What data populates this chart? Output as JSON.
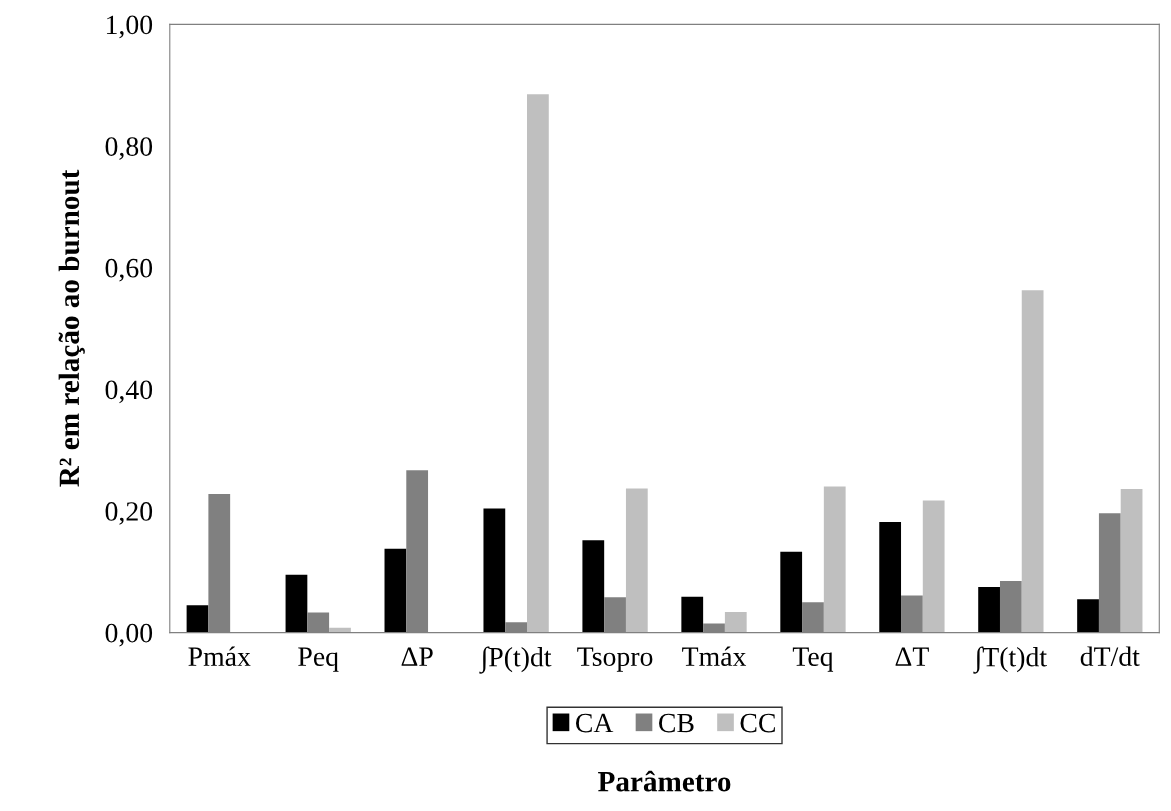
{
  "chart_data": {
    "type": "bar",
    "xlabel": "Parâmetro",
    "ylabel": "R² em relação ao burnout",
    "categories": [
      "Pmáx",
      "Peq",
      "ΔP",
      "∫P(t)dt",
      "Tsopro",
      "Tmáx",
      "Teq",
      "ΔT",
      "∫T(t)dt",
      "dT/dt"
    ],
    "series": [
      {
        "name": "CA",
        "color": "#000000",
        "values": [
          0.045,
          0.095,
          0.138,
          0.204,
          0.152,
          0.059,
          0.133,
          0.182,
          0.075,
          0.055
        ]
      },
      {
        "name": "CB",
        "color": "#808080",
        "values": [
          0.228,
          0.033,
          0.267,
          0.017,
          0.058,
          0.015,
          0.05,
          0.061,
          0.085,
          0.196
        ]
      },
      {
        "name": "CC",
        "color": "#bfbfbf",
        "values": [
          null,
          0.008,
          null,
          0.885,
          0.237,
          0.034,
          0.24,
          0.217,
          0.563,
          0.236
        ]
      }
    ],
    "ylim": [
      0,
      1
    ],
    "yticks": [
      {
        "value": 0,
        "label": "0,00"
      },
      {
        "value": 0.2,
        "label": "0,20"
      },
      {
        "value": 0.4,
        "label": "0,40"
      },
      {
        "value": 0.6,
        "label": "0,60"
      },
      {
        "value": 0.8,
        "label": "0,80"
      },
      {
        "value": 1,
        "label": "1,00"
      }
    ],
    "grid": false,
    "legend": "bottom"
  }
}
